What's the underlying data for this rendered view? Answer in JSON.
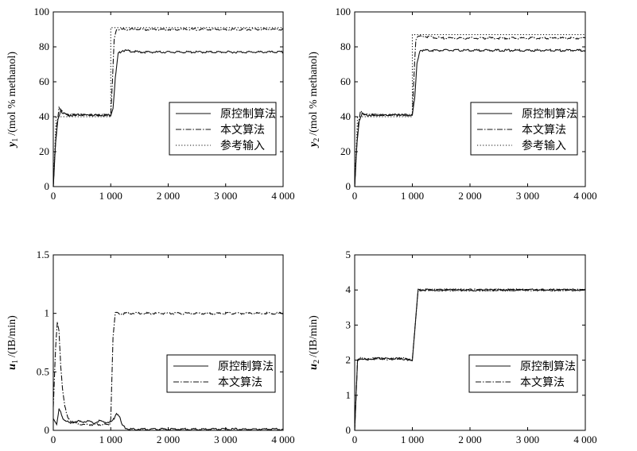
{
  "chart_data": [
    {
      "type": "line",
      "ylabel_var": "y",
      "ylabel_sub": "1",
      "ylabel_unit": "/(mol % methanol)",
      "xlim": [
        0,
        4000
      ],
      "ylim": [
        0,
        100
      ],
      "xticks": [
        "0",
        "1 000",
        "2 000",
        "3 000",
        "4 000"
      ],
      "yticks": [
        "0",
        "20",
        "40",
        "60",
        "80",
        "100"
      ],
      "legend_position": "center-right",
      "series": [
        {
          "name": "原控制算法",
          "style": "solid",
          "x": [
            0,
            40,
            80,
            130,
            160,
            250,
            500,
            800,
            990,
            1000,
            1040,
            1080,
            1130,
            1200,
            1500,
            2000,
            2500,
            3000,
            3500,
            4000
          ],
          "y": [
            0,
            25,
            38,
            44,
            42,
            41,
            41,
            41,
            41,
            41,
            45,
            62,
            76,
            78,
            77,
            77,
            77,
            77,
            77,
            77
          ]
        },
        {
          "name": "本文算法",
          "style": "dashdot",
          "x": [
            0,
            30,
            60,
            100,
            150,
            250,
            500,
            800,
            990,
            1000,
            1030,
            1060,
            1100,
            1200,
            1500,
            2000,
            2500,
            3000,
            3500,
            4000
          ],
          "y": [
            0,
            20,
            35,
            45,
            43,
            41,
            41,
            41,
            41,
            41,
            60,
            85,
            90,
            90,
            90,
            90,
            90,
            90,
            90,
            90
          ]
        },
        {
          "name": "参考输入",
          "style": "dotted",
          "x": [
            0,
            50,
            1000,
            1000,
            4000
          ],
          "y": [
            0,
            40,
            40,
            91,
            91
          ]
        }
      ]
    },
    {
      "type": "line",
      "ylabel_var": "y",
      "ylabel_sub": "2",
      "ylabel_unit": "/(mol % methanol)",
      "xlim": [
        0,
        4000
      ],
      "ylim": [
        0,
        100
      ],
      "xticks": [
        "0",
        "1 000",
        "2 000",
        "3 000",
        "4 000"
      ],
      "yticks": [
        "0",
        "20",
        "40",
        "60",
        "80",
        "100"
      ],
      "legend_position": "center-right",
      "series": [
        {
          "name": "原控制算法",
          "style": "solid",
          "x": [
            0,
            40,
            80,
            130,
            160,
            250,
            500,
            800,
            990,
            1000,
            1040,
            1080,
            1130,
            1200,
            1500,
            2000,
            2500,
            3000,
            3500,
            4000
          ],
          "y": [
            0,
            25,
            38,
            42,
            41,
            41,
            41,
            41,
            41,
            41,
            50,
            70,
            78,
            78,
            78,
            78,
            78,
            78,
            78,
            78
          ]
        },
        {
          "name": "本文算法",
          "style": "dashdot",
          "x": [
            0,
            30,
            60,
            100,
            150,
            250,
            500,
            800,
            990,
            1000,
            1030,
            1060,
            1100,
            1200,
            1500,
            2000,
            2500,
            3000,
            3500,
            4000
          ],
          "y": [
            0,
            20,
            35,
            43,
            42,
            41,
            41,
            41,
            41,
            41,
            65,
            84,
            86,
            86,
            85,
            85,
            85,
            85,
            85,
            85
          ]
        },
        {
          "name": "参考输入",
          "style": "dotted",
          "x": [
            0,
            50,
            1000,
            1000,
            4000
          ],
          "y": [
            0,
            40,
            40,
            87,
            87
          ]
        }
      ]
    },
    {
      "type": "line",
      "ylabel_var": "u",
      "ylabel_sub": "1",
      "ylabel_unit": "/(IB/min)",
      "xlim": [
        0,
        4000
      ],
      "ylim": [
        0,
        1.5
      ],
      "xticks": [
        "0",
        "1 000",
        "2 000",
        "3 000",
        "4 000"
      ],
      "yticks": [
        "0",
        "0.5",
        "1",
        "1.5"
      ],
      "legend_position": "lower-right",
      "series": [
        {
          "name": "原控制算法",
          "style": "solid",
          "x": [
            0,
            60,
            100,
            130,
            170,
            220,
            300,
            400,
            500,
            600,
            700,
            800,
            900,
            1000,
            1060,
            1100,
            1150,
            1200,
            1300,
            1500,
            2000,
            2500,
            3000,
            3500,
            4000
          ],
          "y": [
            0.1,
            0.05,
            0.18,
            0.15,
            0.1,
            0.08,
            0.06,
            0.08,
            0.07,
            0.08,
            0.06,
            0.08,
            0.07,
            0.07,
            0.1,
            0.15,
            0.12,
            0.04,
            0.01,
            0.01,
            0.01,
            0.01,
            0.01,
            0.01,
            0.01
          ]
        },
        {
          "name": "本文算法",
          "style": "dashdot",
          "x": [
            0,
            40,
            70,
            100,
            130,
            160,
            200,
            250,
            300,
            400,
            500,
            600,
            700,
            800,
            900,
            980,
            1000,
            1040,
            1080,
            1200,
            1500,
            2000,
            2500,
            3000,
            3500,
            4000
          ],
          "y": [
            0.2,
            0.7,
            0.93,
            0.85,
            0.55,
            0.35,
            0.2,
            0.12,
            0.08,
            0.06,
            0.05,
            0.05,
            0.05,
            0.05,
            0.05,
            0.05,
            0.1,
            0.8,
            1.0,
            1.0,
            1.0,
            1.0,
            1.0,
            1.0,
            1.0,
            1.0
          ]
        }
      ]
    },
    {
      "type": "line",
      "ylabel_var": "u",
      "ylabel_sub": "2",
      "ylabel_unit": "/(IB/min)",
      "xlim": [
        0,
        4000
      ],
      "ylim": [
        0,
        5
      ],
      "xticks": [
        "0",
        "1 000",
        "2 000",
        "3 000",
        "4 000"
      ],
      "yticks": [
        "0",
        "1",
        "2",
        "3",
        "4",
        "5"
      ],
      "legend_position": "lower-right",
      "series": [
        {
          "name": "原控制算法",
          "style": "solid",
          "x": [
            0,
            50,
            100,
            200,
            400,
            600,
            800,
            1000,
            1050,
            1100,
            1500,
            2000,
            3000,
            4000
          ],
          "y": [
            0,
            2.0,
            2.05,
            2.02,
            2.05,
            2.03,
            2.05,
            2.0,
            3.0,
            4.0,
            4.0,
            4.0,
            4.0,
            4.0
          ]
        },
        {
          "name": "本文算法",
          "style": "dashdot",
          "x": [
            0,
            50,
            100,
            200,
            400,
            600,
            800,
            1000,
            1050,
            1100,
            1500,
            2000,
            3000,
            4000
          ],
          "y": [
            0,
            2.0,
            2.05,
            2.02,
            2.05,
            2.03,
            2.05,
            2.0,
            3.0,
            4.0,
            4.0,
            4.0,
            4.0,
            4.0
          ]
        }
      ]
    }
  ]
}
